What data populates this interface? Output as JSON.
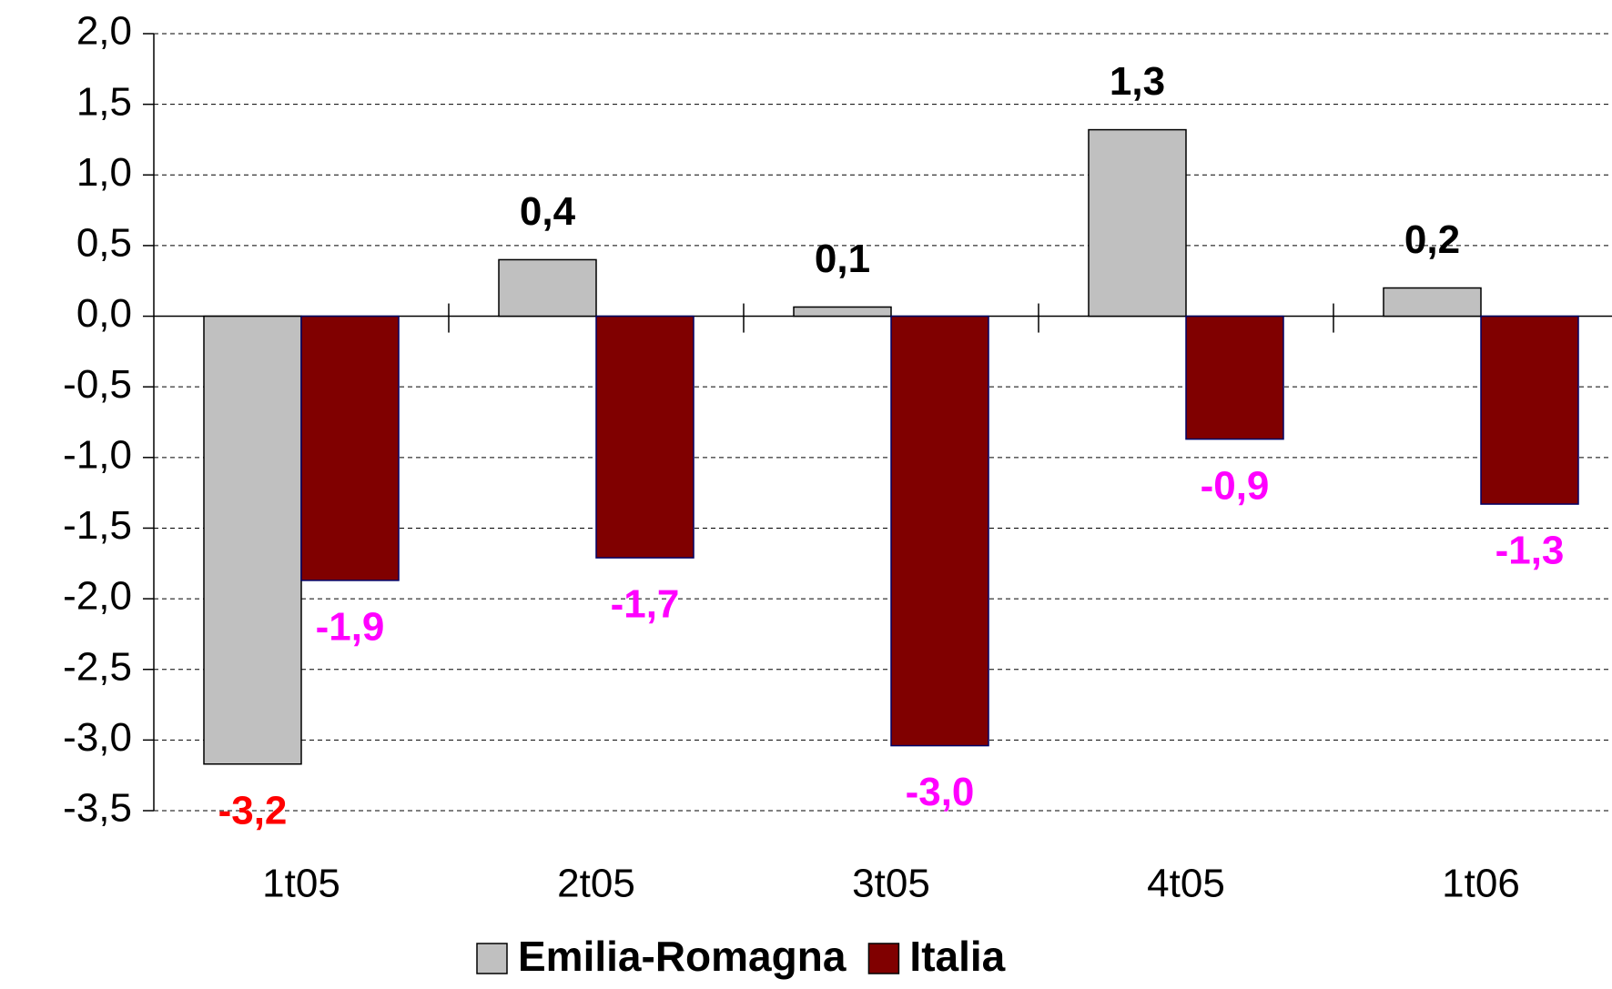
{
  "chart_data": {
    "type": "bar",
    "categories": [
      "1t05",
      "2t05",
      "3t05",
      "4t05",
      "1t06"
    ],
    "series": [
      {
        "name": "Emilia-Romagna",
        "color": "#c0c0c0",
        "values": [
          -3.17,
          0.4,
          0.065,
          1.32,
          0.2
        ],
        "value_labels": [
          "-3,2",
          "0,4",
          "0,1",
          "1,3",
          "0,2"
        ],
        "label_color": "#000000",
        "negative_label_color": "#ff0000"
      },
      {
        "name": "Italia",
        "color": "#800000",
        "values": [
          -1.87,
          -1.71,
          -3.04,
          -0.87,
          -1.33
        ],
        "value_labels": [
          "-1,9",
          "-1,7",
          "-3,0",
          "-0,9",
          "-1,3"
        ],
        "label_color": "#ff00ff",
        "negative_label_color": "#ff00ff"
      }
    ],
    "ylim": [
      -3.5,
      2.0
    ],
    "yticks": [
      {
        "value": -3.5,
        "label": "-3,5"
      },
      {
        "value": -3.0,
        "label": "-3,0"
      },
      {
        "value": -2.5,
        "label": "-2,5"
      },
      {
        "value": -2.0,
        "label": "-2,0"
      },
      {
        "value": -1.5,
        "label": "-1,5"
      },
      {
        "value": -1.0,
        "label": "-1,0"
      },
      {
        "value": -0.5,
        "label": "-0,5"
      },
      {
        "value": 0,
        "label": "0,0"
      },
      {
        "value": 0.5,
        "label": "0,5"
      },
      {
        "value": 1.0,
        "label": "1,0"
      },
      {
        "value": 1.5,
        "label": "1,5"
      },
      {
        "value": 2.0,
        "label": "2,0"
      }
    ],
    "grid": true,
    "legend": "bottom"
  }
}
